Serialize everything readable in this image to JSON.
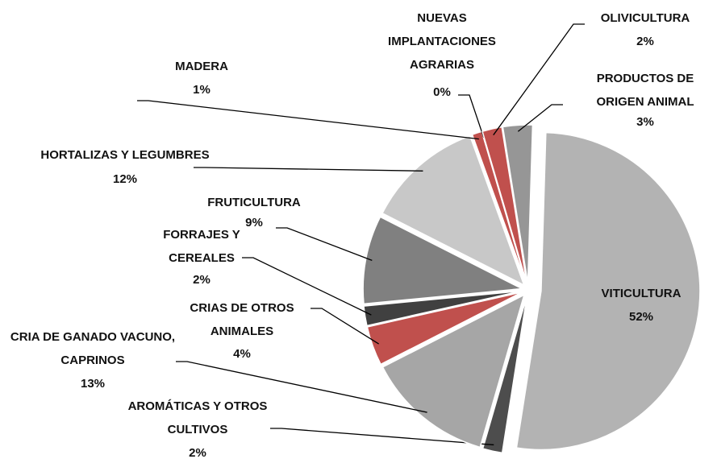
{
  "chart_data": {
    "type": "pie",
    "categories": [
      "VITICULTURA",
      "AROMÁTICAS Y OTROS CULTIVOS",
      "CRIA DE GANADO VACUNO, CAPRINOS",
      "CRIAS DE OTROS ANIMALES",
      "FORRAJES Y CEREALES",
      "FRUTICULTURA",
      "HORTALIZAS Y LEGUMBRES",
      "MADERA",
      "NUEVAS IMPLANTACIONES AGRARIAS",
      "OLIVICULTURA",
      "PRODUCTOS DE ORIGEN ANIMAL"
    ],
    "values": [
      52,
      2,
      13,
      4,
      2,
      9,
      12,
      1,
      0,
      2,
      3
    ],
    "value_labels": [
      "52%",
      "2%",
      "13%",
      "4%",
      "2%",
      "9%",
      "12%",
      "1%",
      "0%",
      "2%",
      "3%"
    ],
    "colors": [
      "#b3b3b3",
      "#4d4d4d",
      "#a6a6a6",
      "#c0504d",
      "#404040",
      "#808080",
      "#c8c8c8",
      "#c0504d",
      "#d9d9d9",
      "#c0504d",
      "#969696"
    ]
  }
}
